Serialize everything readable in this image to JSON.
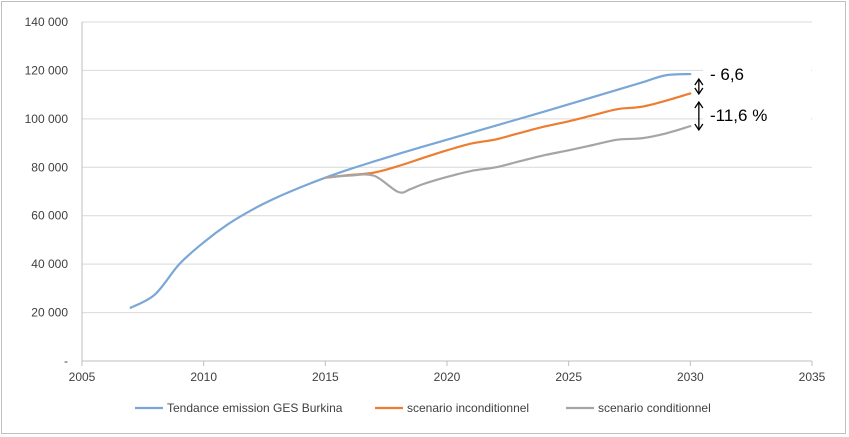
{
  "chart_data": {
    "type": "line",
    "title": "",
    "xlabel": "",
    "ylabel": "",
    "xlim": [
      2005,
      2035
    ],
    "ylim": [
      0,
      140000
    ],
    "x_ticks": [
      "2005",
      "2010",
      "2015",
      "2020",
      "2025",
      "2030",
      "2035"
    ],
    "y_ticks": [
      "-",
      "20 000",
      "40 000",
      "60 000",
      "80 000",
      "100 000",
      "120 000",
      "140 000"
    ],
    "grid": "horizontal",
    "legend_position": "bottom",
    "series": [
      {
        "name": "Tendance emission GES Burkina",
        "color": "#7ba7d7",
        "points": [
          [
            2007,
            22000
          ],
          [
            2008,
            27500
          ],
          [
            2009,
            40000
          ],
          [
            2010,
            49000
          ],
          [
            2011,
            56500
          ],
          [
            2012,
            62500
          ],
          [
            2013,
            67500
          ],
          [
            2014,
            71800
          ],
          [
            2015,
            75700
          ],
          [
            2016,
            79200
          ],
          [
            2017,
            82400
          ],
          [
            2018,
            85500
          ],
          [
            2019,
            88500
          ],
          [
            2020,
            91400
          ],
          [
            2021,
            94300
          ],
          [
            2022,
            97200
          ],
          [
            2023,
            100100
          ],
          [
            2024,
            103000
          ],
          [
            2025,
            106000
          ],
          [
            2026,
            109000
          ],
          [
            2027,
            112000
          ],
          [
            2028,
            115000
          ],
          [
            2029,
            118000
          ],
          [
            2030,
            118500
          ]
        ]
      },
      {
        "name": "scenario inconditionnel",
        "color": "#ed7d31",
        "points": [
          [
            2015,
            75700
          ],
          [
            2016,
            76800
          ],
          [
            2017,
            77800
          ],
          [
            2018,
            80500
          ],
          [
            2019,
            83800
          ],
          [
            2020,
            87000
          ],
          [
            2021,
            89800
          ],
          [
            2022,
            91500
          ],
          [
            2023,
            94200
          ],
          [
            2024,
            96800
          ],
          [
            2025,
            99000
          ],
          [
            2026,
            101500
          ],
          [
            2027,
            104000
          ],
          [
            2028,
            105000
          ],
          [
            2029,
            107500
          ],
          [
            2030,
            110500
          ]
        ]
      },
      {
        "name": "scenario conditionnel",
        "color": "#a5a5a5",
        "points": [
          [
            2015,
            75700
          ],
          [
            2016,
            76600
          ],
          [
            2017,
            76500
          ],
          [
            2018,
            69800
          ],
          [
            2018.5,
            71000
          ],
          [
            2019,
            73000
          ],
          [
            2020,
            76000
          ],
          [
            2021,
            78500
          ],
          [
            2022,
            80000
          ],
          [
            2023,
            82500
          ],
          [
            2024,
            85000
          ],
          [
            2025,
            87000
          ],
          [
            2026,
            89200
          ],
          [
            2027,
            91400
          ],
          [
            2028,
            92000
          ],
          [
            2029,
            94000
          ],
          [
            2030,
            97000
          ]
        ]
      }
    ],
    "annotations": [
      {
        "text": "- 6,6"
      },
      {
        "text": "-11,6 %"
      }
    ]
  }
}
